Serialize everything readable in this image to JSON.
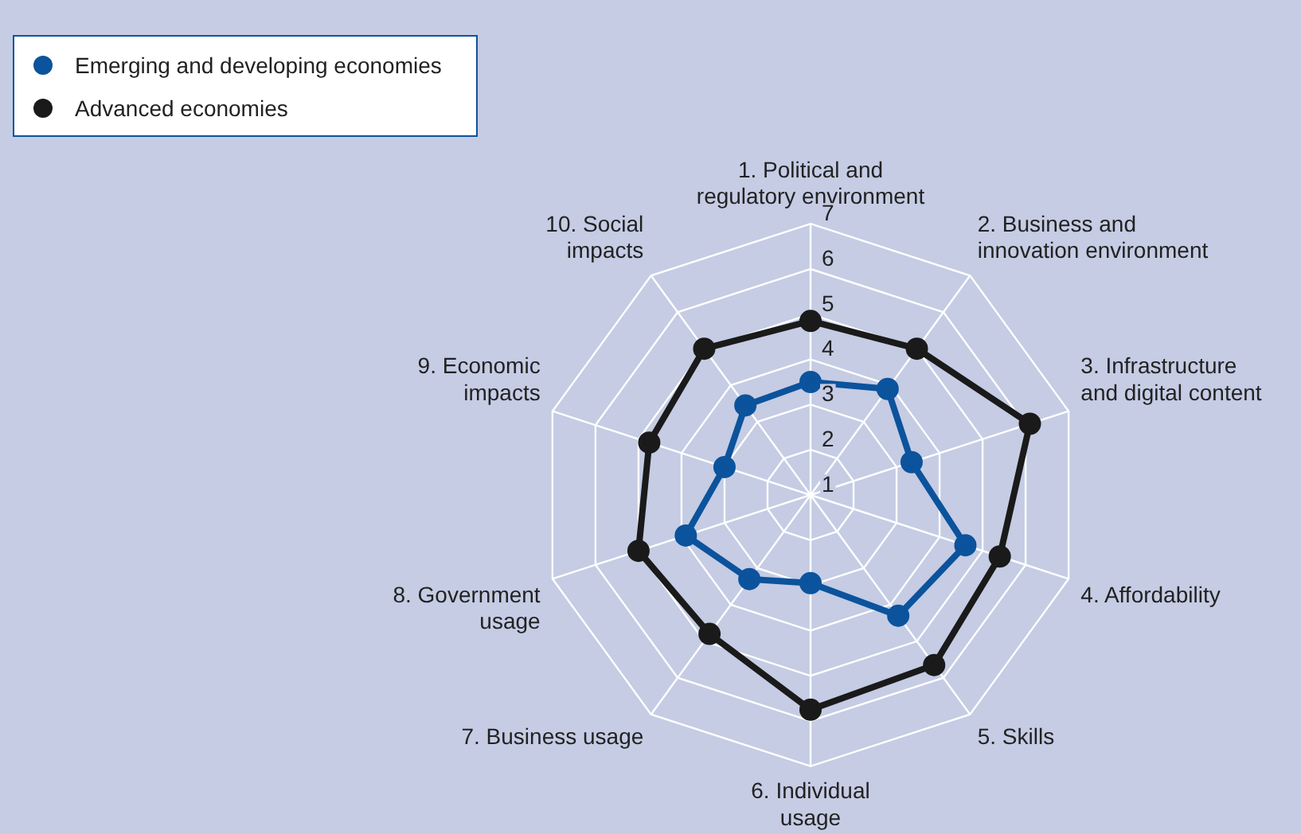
{
  "chart_data": {
    "type": "radar",
    "categories": [
      "1. Political and regulatory environment",
      "2. Business and innovation environment",
      "3. Infrastructure and digital content",
      "4. Affordability",
      "5. Skills",
      "6. Individual usage",
      "7. Business usage",
      "8. Government usage",
      "9. Economic impacts",
      "10. Social impacts"
    ],
    "series": [
      {
        "name": "Emerging and developing economies",
        "color": "#0b539c",
        "values": [
          3.5,
          3.9,
          3.35,
          4.6,
          4.3,
          2.95,
          3.3,
          3.9,
          3.0,
          3.45
        ]
      },
      {
        "name": "Advanced economies",
        "color": "#1a1a1a",
        "values": [
          4.85,
          5.0,
          6.1,
          5.4,
          5.65,
          5.75,
          4.8,
          5.0,
          4.75,
          5.0
        ]
      }
    ],
    "ylim": [
      1,
      7
    ],
    "yticks": [
      1,
      2,
      3,
      4,
      5,
      6,
      7
    ],
    "grid": true,
    "legend": "top left",
    "marker": "circle"
  }
}
